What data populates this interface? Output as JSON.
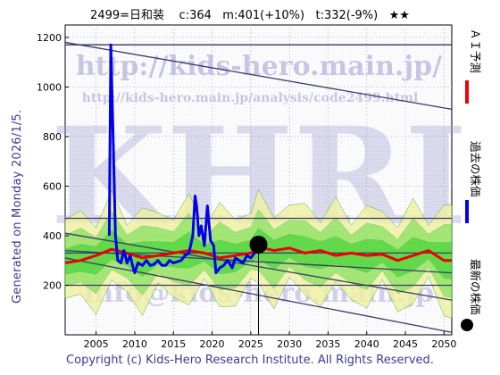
{
  "header": {
    "title": "2499=日和装    c:364   m:401(+10%)   t:332(-9%)   ★★"
  },
  "side_label": "Generated on Monday 2026/1/5.",
  "footer": "Copyright (c) Kids-Hero Research Institute. All Rights Reserved.",
  "watermarks": {
    "url": "http://kids-hero.main.jp/",
    "url2": "http://kids-hero.main.jp/analysis/code2499.html",
    "logo": "KHRI",
    "email": "info@kids-hero.main.jp"
  },
  "legend": {
    "ai": "ＡＩ予測",
    "past": "過去の株価",
    "latest": "最新の株価"
  },
  "colors": {
    "price": "#0000ee",
    "forecast": "#ee0000",
    "band_green": "#22cc22",
    "band_yellow": "#f0f0a0",
    "trendline": "#3a3a6a"
  },
  "chart_data": {
    "type": "line",
    "title": "2499=日和装    c:364   m:401(+10%)   t:332(-9%)   ★★",
    "xlim": [
      2001,
      2051
    ],
    "ylim": [
      0,
      1250
    ],
    "x_ticks": [
      2005,
      2010,
      2015,
      2020,
      2025,
      2030,
      2035,
      2040,
      2045,
      2050
    ],
    "y_ticks": [
      200,
      400,
      600,
      800,
      1000,
      1200
    ],
    "grid": true,
    "legend_placement": "right (vertical)",
    "latest_price": {
      "x": 2026.0,
      "y": 364
    },
    "series": [
      {
        "name": "過去の株価",
        "color": "#0000ee",
        "points": [
          [
            2006.7,
            400
          ],
          [
            2006.9,
            1170
          ],
          [
            2007.2,
            800
          ],
          [
            2007.5,
            400
          ],
          [
            2007.8,
            300
          ],
          [
            2008.2,
            290
          ],
          [
            2008.6,
            340
          ],
          [
            2009.0,
            290
          ],
          [
            2009.4,
            320
          ],
          [
            2009.8,
            270
          ],
          [
            2010.0,
            250
          ],
          [
            2010.4,
            290
          ],
          [
            2011.0,
            280
          ],
          [
            2011.5,
            300
          ],
          [
            2012.0,
            280
          ],
          [
            2012.5,
            285
          ],
          [
            2013.0,
            300
          ],
          [
            2013.5,
            280
          ],
          [
            2014.0,
            280
          ],
          [
            2014.5,
            300
          ],
          [
            2015.0,
            290
          ],
          [
            2015.5,
            295
          ],
          [
            2016.0,
            300
          ],
          [
            2016.5,
            320
          ],
          [
            2017.0,
            330
          ],
          [
            2017.5,
            400
          ],
          [
            2017.8,
            560
          ],
          [
            2018.0,
            520
          ],
          [
            2018.3,
            400
          ],
          [
            2018.6,
            440
          ],
          [
            2019.0,
            360
          ],
          [
            2019.4,
            520
          ],
          [
            2019.8,
            380
          ],
          [
            2020.2,
            360
          ],
          [
            2020.5,
            250
          ],
          [
            2021.0,
            270
          ],
          [
            2021.5,
            280
          ],
          [
            2022.0,
            300
          ],
          [
            2022.6,
            270
          ],
          [
            2023.0,
            310
          ],
          [
            2023.5,
            300
          ],
          [
            2024.0,
            290
          ],
          [
            2024.5,
            320
          ],
          [
            2025.0,
            310
          ],
          [
            2025.5,
            330
          ],
          [
            2026.0,
            364
          ]
        ]
      },
      {
        "name": "ＡＩ予測",
        "color": "#ee0000",
        "points": [
          [
            2001,
            290
          ],
          [
            2003,
            300
          ],
          [
            2005,
            320
          ],
          [
            2007,
            345
          ],
          [
            2009,
            330
          ],
          [
            2011,
            310
          ],
          [
            2013,
            320
          ],
          [
            2015,
            330
          ],
          [
            2017,
            340
          ],
          [
            2019,
            330
          ],
          [
            2021,
            310
          ],
          [
            2023,
            320
          ],
          [
            2025,
            330
          ],
          [
            2026,
            355
          ],
          [
            2028,
            340
          ],
          [
            2030,
            350
          ],
          [
            2032,
            330
          ],
          [
            2034,
            340
          ],
          [
            2036,
            320
          ],
          [
            2038,
            330
          ],
          [
            2040,
            320
          ],
          [
            2042,
            325
          ],
          [
            2044,
            300
          ],
          [
            2046,
            320
          ],
          [
            2048,
            340
          ],
          [
            2050,
            300
          ],
          [
            2051,
            300
          ]
        ]
      }
    ],
    "trend_lines": [
      {
        "from": [
          2001,
          1180
        ],
        "to": [
          2051,
          910
        ]
      },
      {
        "from": [
          2001,
          1170
        ],
        "to": [
          2051,
          1170
        ]
      },
      {
        "from": [
          2001,
          410
        ],
        "to": [
          2051,
          140
        ]
      },
      {
        "from": [
          2001,
          340
        ],
        "to": [
          2051,
          250
        ]
      },
      {
        "from": [
          2001,
          310
        ],
        "to": [
          2051,
          10
        ]
      },
      {
        "from": [
          2001,
          470
        ],
        "to": [
          2051,
          470
        ]
      },
      {
        "from": [
          2001,
          330
        ],
        "to": [
          2051,
          330
        ]
      },
      {
        "from": [
          2001,
          200
        ],
        "to": [
          2051,
          200
        ]
      }
    ]
  }
}
